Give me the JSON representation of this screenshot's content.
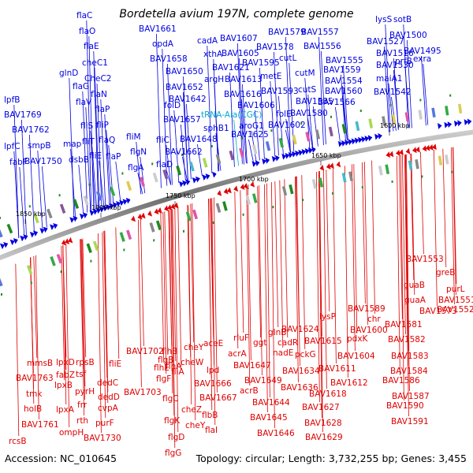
{
  "title": "Bordetella avium 197N, complete genome",
  "footer": {
    "accession": "Accession: NC_010645",
    "summary": "Topology: circular; Length: 3,732,255 bp; Genes: 3,455"
  },
  "colors": {
    "forward": "#0000e0",
    "reverse": "#e00000",
    "trna": "#00aacc",
    "backbone": "#888888"
  },
  "scale_labels": [
    "1850 kbp",
    "1800 kbp",
    "1750 kbp",
    "1700 kbp",
    "1650 kbp",
    "1600 kbp"
  ],
  "forward_genes": [
    "lpfB",
    "BAV1769",
    "lpfC",
    "fabF",
    "BAV1762",
    "smpB",
    "BAV1750",
    "glnD",
    "map",
    "dsbB",
    "flaG",
    "flaV",
    "fliS",
    "fliT",
    "fliE",
    "flaC",
    "flaO",
    "flaE",
    "cheC1",
    "CheC2",
    "flaN",
    "flaP",
    "fliP",
    "flaQ",
    "flaP",
    "fliM",
    "flgN",
    "flgA",
    "BAV1661",
    "opdA",
    "BAV1658",
    "fliC",
    "flaD",
    "BAV1650",
    "BAV1652",
    "BAV1642",
    "folD",
    "BAV1657",
    "BAV1662",
    "BAV1648",
    "cadA",
    "xthA",
    "argH",
    "BAV1621",
    "sphB1",
    "BAV1607",
    "BAV1605",
    "BAV1613",
    "BAV1616",
    "BAV1606",
    "BAV1625",
    "aroG1",
    "tRNA-Ala(CGC)",
    "BAV1579",
    "BAV1595",
    "metE",
    "BAV1593",
    "folE",
    "BAV1602",
    "BAV1578",
    "cutL",
    "cutM",
    "cutS",
    "BAV1585",
    "BAV1580",
    "BAV1557",
    "BAV1556",
    "BAV1555",
    "BAV1559",
    "BAV1560",
    "BAV1554",
    "BAV1566",
    "lysS",
    "sotB",
    "BAV1527",
    "BAV1530",
    "BAV1500",
    "BAV1516",
    "prfB",
    "exra",
    "BAV1495",
    "maiA1",
    "BAV1542"
  ],
  "reverse_genes": [
    "BAV1553",
    "greB",
    "purL",
    "BAV1551",
    "guaB",
    "guaA",
    "BAV1573",
    "BAV1552",
    "BAV1589",
    "lysP",
    "BAV1581",
    "chr",
    "pdxK",
    "BAV1600",
    "BAV1582",
    "BAV1583",
    "BAV1584",
    "BAV1586",
    "BAV1587",
    "BAV1590",
    "BAV1591",
    "BAV1624",
    "BAV1615",
    "BAV1604",
    "glnB",
    "cadR",
    "nadE",
    "pckG",
    "BAV1611",
    "BAV1612",
    "BAV1618",
    "BAV1627",
    "BAV1628",
    "BAV1629",
    "rluF",
    "ggt",
    "acrA",
    "BAV1647",
    "BAV1649",
    "acrB",
    "BAV1634",
    "BAV1636",
    "BAV1644",
    "BAV1645",
    "BAV1646",
    "cheY",
    "aceE",
    "cheW",
    "fliA",
    "lpd",
    "flhB",
    "flhA",
    "BAV1666",
    "BAV1667",
    "flhE",
    "flgB",
    "flgF",
    "flgC",
    "flgK",
    "flgD",
    "flgG",
    "cheZ",
    "cheY",
    "flbB",
    "flaI",
    "BAV1702",
    "BAV1703",
    "fliE",
    "dedC",
    "dedD",
    "cvpA",
    "purF",
    "BAV1730",
    "rpsB",
    "tsf",
    "pyrH",
    "frr",
    "rth",
    "ompH",
    "lpxD",
    "fabZ",
    "lpxB",
    "lpxA",
    "mmsB",
    "BAV1763",
    "tmk",
    "holB",
    "BAV1761",
    "rcsB"
  ]
}
